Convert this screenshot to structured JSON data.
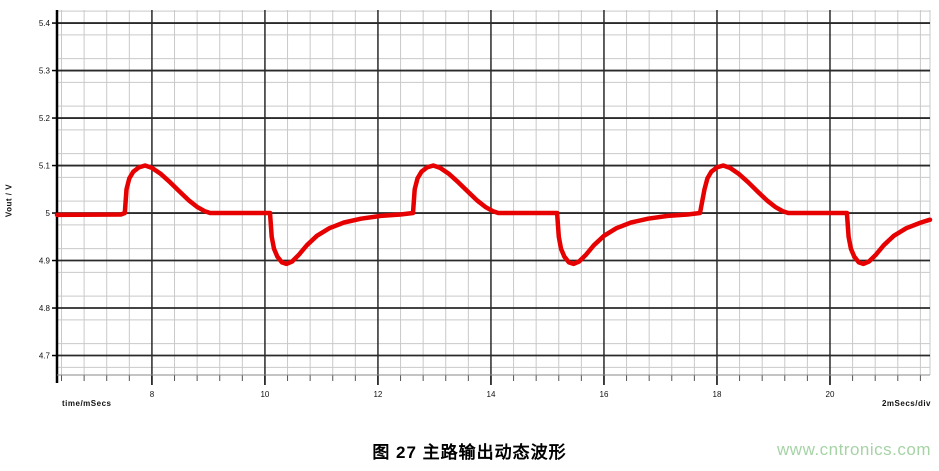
{
  "figure": {
    "caption": "图 27 主路输出动态波形",
    "watermark": "www.cntronics.com"
  },
  "axes": {
    "y_title": "Vout / V",
    "x_left_label": "time/mSecs",
    "x_right_label": "2mSecs/div"
  },
  "colors": {
    "trace": "#e60000",
    "grid_minor": "#c9c9c9",
    "grid_major": "#2a2a2a",
    "axis": "#000000",
    "tick_text": "#111111",
    "watermark": "#a6d3a6"
  },
  "chart_data": {
    "type": "line",
    "title": "",
    "xlabel": "time/mSecs",
    "ylabel": "Vout / V",
    "x_scale_note": "2mSecs/div",
    "grid": true,
    "legend": "none",
    "xlim": [
      6.32,
      21.77
    ],
    "ylim": [
      4.659,
      5.4275
    ],
    "x_ticks": [
      8,
      10,
      12,
      14,
      16,
      18,
      20
    ],
    "x_tick_labels": [
      "8",
      "10",
      "12",
      "14",
      "16",
      "18",
      "20"
    ],
    "y_ticks": [
      4.7,
      4.8,
      4.9,
      5.0,
      5.1,
      5.2,
      5.3,
      5.4
    ],
    "y_tick_labels": [
      "4.7",
      "4.8",
      "4.9",
      "5",
      "5.1",
      "5.2",
      "5.3",
      "5.4"
    ],
    "x_minor_start": 6.4,
    "x_minor_step": 0.4,
    "y_minor_start": 4.675,
    "y_minor_step": 0.05,
    "series": [
      {
        "name": "Vout",
        "color": "#e60000",
        "points": [
          [
            6.32,
            4.996
          ],
          [
            7.45,
            4.997
          ],
          [
            7.52,
            5.0
          ],
          [
            7.55,
            5.05
          ],
          [
            7.6,
            5.073
          ],
          [
            7.67,
            5.087
          ],
          [
            7.77,
            5.096
          ],
          [
            7.88,
            5.1
          ],
          [
            8.0,
            5.095
          ],
          [
            8.15,
            5.083
          ],
          [
            8.32,
            5.065
          ],
          [
            8.5,
            5.044
          ],
          [
            8.66,
            5.026
          ],
          [
            8.8,
            5.013
          ],
          [
            8.93,
            5.004
          ],
          [
            9.03,
            5.0
          ],
          [
            9.6,
            5.0
          ],
          [
            10.09,
            5.0
          ],
          [
            10.12,
            4.95
          ],
          [
            10.16,
            4.925
          ],
          [
            10.22,
            4.908
          ],
          [
            10.3,
            4.896
          ],
          [
            10.38,
            4.893
          ],
          [
            10.48,
            4.898
          ],
          [
            10.6,
            4.912
          ],
          [
            10.74,
            4.932
          ],
          [
            10.92,
            4.952
          ],
          [
            11.14,
            4.968
          ],
          [
            11.4,
            4.98
          ],
          [
            11.7,
            4.988
          ],
          [
            12.05,
            4.994
          ],
          [
            12.4,
            4.997
          ],
          [
            12.62,
            5.0
          ],
          [
            12.65,
            5.05
          ],
          [
            12.7,
            5.073
          ],
          [
            12.77,
            5.087
          ],
          [
            12.87,
            5.096
          ],
          [
            12.98,
            5.1
          ],
          [
            13.1,
            5.095
          ],
          [
            13.25,
            5.083
          ],
          [
            13.42,
            5.065
          ],
          [
            13.6,
            5.044
          ],
          [
            13.76,
            5.026
          ],
          [
            13.9,
            5.013
          ],
          [
            14.03,
            5.004
          ],
          [
            14.13,
            5.0
          ],
          [
            14.7,
            5.0
          ],
          [
            15.17,
            5.0
          ],
          [
            15.2,
            4.95
          ],
          [
            15.24,
            4.925
          ],
          [
            15.3,
            4.908
          ],
          [
            15.38,
            4.896
          ],
          [
            15.46,
            4.893
          ],
          [
            15.56,
            4.898
          ],
          [
            15.68,
            4.912
          ],
          [
            15.82,
            4.932
          ],
          [
            16.0,
            4.952
          ],
          [
            16.22,
            4.968
          ],
          [
            16.48,
            4.98
          ],
          [
            16.78,
            4.988
          ],
          [
            17.13,
            4.994
          ],
          [
            17.48,
            4.997
          ],
          [
            17.7,
            5.0
          ],
          [
            17.78,
            5.05
          ],
          [
            17.83,
            5.073
          ],
          [
            17.9,
            5.087
          ],
          [
            18.0,
            5.096
          ],
          [
            18.11,
            5.1
          ],
          [
            18.23,
            5.095
          ],
          [
            18.38,
            5.083
          ],
          [
            18.55,
            5.065
          ],
          [
            18.73,
            5.044
          ],
          [
            18.89,
            5.026
          ],
          [
            19.03,
            5.013
          ],
          [
            19.16,
            5.004
          ],
          [
            19.26,
            5.0
          ],
          [
            19.8,
            5.0
          ],
          [
            20.3,
            5.0
          ],
          [
            20.33,
            4.95
          ],
          [
            20.37,
            4.925
          ],
          [
            20.43,
            4.908
          ],
          [
            20.51,
            4.896
          ],
          [
            20.59,
            4.893
          ],
          [
            20.69,
            4.898
          ],
          [
            20.81,
            4.912
          ],
          [
            20.95,
            4.932
          ],
          [
            21.13,
            4.952
          ],
          [
            21.35,
            4.968
          ],
          [
            21.61,
            4.98
          ],
          [
            21.77,
            4.986
          ]
        ]
      }
    ]
  }
}
